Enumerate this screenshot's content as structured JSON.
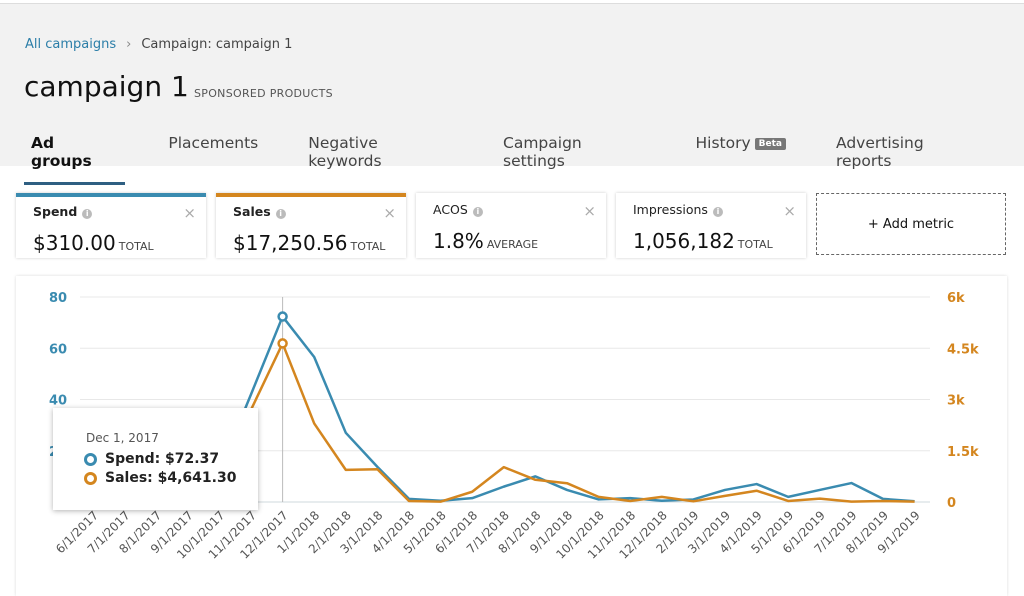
{
  "breadcrumb": {
    "root": "All campaigns",
    "current": "Campaign: campaign 1"
  },
  "header": {
    "title": "campaign 1",
    "subtitle": "SPONSORED PRODUCTS"
  },
  "tabs": [
    {
      "label": "Ad groups",
      "active": true
    },
    {
      "label": "Placements"
    },
    {
      "label": "Negative keywords"
    },
    {
      "label": "Campaign settings"
    },
    {
      "label": "History",
      "badge": "Beta"
    },
    {
      "label": "Advertising reports"
    }
  ],
  "metrics": [
    {
      "label": "Spend",
      "value": "$310.00",
      "unit": "TOTAL",
      "color": "#3a8bb0"
    },
    {
      "label": "Sales",
      "value": "$17,250.56",
      "unit": "TOTAL",
      "color": "#d4861f"
    },
    {
      "label": "ACOS",
      "value": "1.8%",
      "unit": "AVERAGE"
    },
    {
      "label": "Impressions",
      "value": "1,056,182",
      "unit": "TOTAL"
    }
  ],
  "add_metric_label": "+ Add metric",
  "tooltip": {
    "date": "Dec 1, 2017",
    "spend": "Spend: $72.37",
    "sales": "Sales: $4,641.30"
  },
  "chart_data": {
    "type": "line",
    "categories": [
      "6/1/2017",
      "7/1/2017",
      "8/1/2017",
      "9/1/2017",
      "10/1/2017",
      "11/1/2017",
      "12/1/2017",
      "1/1/2018",
      "2/1/2018",
      "3/1/2018",
      "4/1/2018",
      "5/1/2018",
      "6/1/2018",
      "7/1/2018",
      "8/1/2018",
      "9/1/2018",
      "10/1/2018",
      "11/1/2018",
      "12/1/2018",
      "2/1/2019",
      "3/1/2019",
      "4/1/2019",
      "5/1/2019",
      "6/1/2019",
      "7/1/2019",
      "8/1/2019",
      "9/1/2019"
    ],
    "series": [
      {
        "name": "Spend",
        "axis": "left",
        "color": "#3a8bb0",
        "values": [
          0,
          0,
          0,
          2,
          12,
          42,
          72.37,
          56.6,
          27,
          13.7,
          1.2,
          0.5,
          1.5,
          6,
          10,
          4.7,
          1,
          1.5,
          0.5,
          1,
          4.7,
          7,
          2,
          4.7,
          7.4,
          1.2,
          0.3
        ]
      },
      {
        "name": "Sales",
        "axis": "right",
        "color": "#d4861f",
        "values": [
          0,
          0,
          0,
          100,
          600,
          2700,
          4641.3,
          2300,
          940,
          960,
          30,
          10,
          300,
          1020,
          650,
          550,
          150,
          30,
          150,
          20,
          180,
          330,
          30,
          100,
          10,
          30,
          10
        ]
      }
    ],
    "y_left": {
      "ticks": [
        "80",
        "60",
        "40",
        "20"
      ],
      "range": [
        0,
        80
      ],
      "color": "#3a8bb0"
    },
    "y_right": {
      "ticks": [
        "6k",
        "4.5k",
        "3k",
        "1.5k",
        "0"
      ],
      "range": [
        0,
        6000
      ],
      "color": "#d4861f"
    },
    "grid": true,
    "highlight_index": 6
  }
}
